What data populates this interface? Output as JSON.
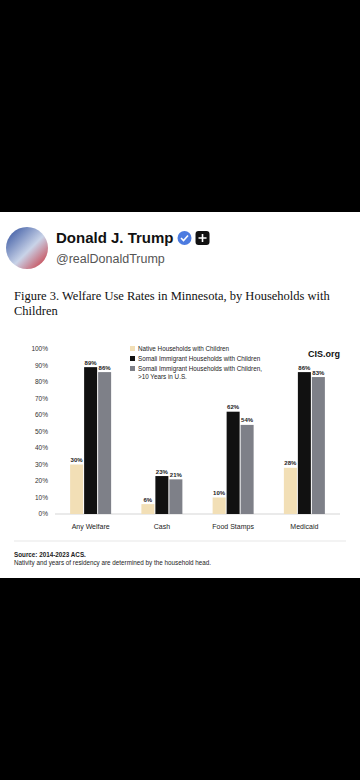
{
  "post": {
    "author": "Donald J. Trump",
    "handle": "@realDonaldTrump"
  },
  "chart_data": {
    "type": "bar",
    "title": "Figure 3. Welfare Use Rates in Minnesota, by Households with Children",
    "categories": [
      "Any Welfare",
      "Cash",
      "Food Stamps",
      "Medicaid"
    ],
    "series": [
      {
        "name": "Native Households with Children",
        "color": "#f2dfb6",
        "values": [
          30,
          6,
          10,
          28
        ],
        "value_labels": [
          "30%",
          "6%",
          "10%",
          "28%"
        ]
      },
      {
        "name": "Somali Immigrant Households with Children",
        "color": "#111111",
        "values": [
          89,
          23,
          62,
          86
        ],
        "value_labels": [
          "89%",
          "23%",
          "62%",
          "86%"
        ]
      },
      {
        "name": "Somali Immigrant Households with Children, >10 Years in U.S.",
        "color": "#7e8088",
        "values": [
          86,
          21,
          54,
          83
        ],
        "value_labels": [
          "86%",
          "21%",
          "54%",
          "83%"
        ]
      }
    ],
    "ylim": [
      0,
      100
    ],
    "yticks": [
      {
        "value": 0,
        "label": "0%"
      },
      {
        "value": 10,
        "label": "10%"
      },
      {
        "value": 20,
        "label": "20%"
      },
      {
        "value": 30,
        "label": "30%"
      },
      {
        "value": 40,
        "label": "40%"
      },
      {
        "value": 50,
        "label": "50%"
      },
      {
        "value": 60,
        "label": "60%"
      },
      {
        "value": 70,
        "label": "70%"
      },
      {
        "value": 80,
        "label": "80%"
      },
      {
        "value": 90,
        "label": "90%"
      },
      {
        "value": 100,
        "label": "100%"
      }
    ],
    "grid": false,
    "legend": "top",
    "data_labels": true,
    "annotations": [
      "CIS.org",
      "Source: 2014-2023 ACS.",
      "Nativity and years of residency are determined by the household head."
    ]
  }
}
